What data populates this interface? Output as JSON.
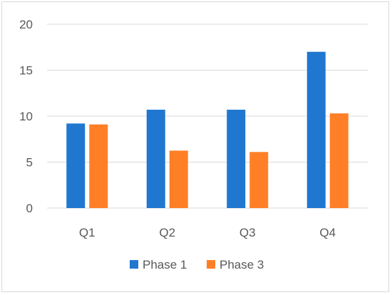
{
  "chart_data": {
    "type": "bar",
    "categories": [
      "Q1",
      "Q2",
      "Q3",
      "Q4"
    ],
    "series": [
      {
        "name": "Phase 1",
        "color": "#1f77d0",
        "values": [
          9.2,
          10.7,
          10.7,
          17.0
        ]
      },
      {
        "name": "Phase 3",
        "color": "#ff7f27",
        "values": [
          9.1,
          6.25,
          6.1,
          10.3
        ]
      }
    ],
    "ylim": [
      0,
      20
    ],
    "yticks": [
      0,
      5,
      10,
      15,
      20
    ],
    "grid": true,
    "legend": "bottom",
    "gridline_color": "#d9d9d9"
  }
}
